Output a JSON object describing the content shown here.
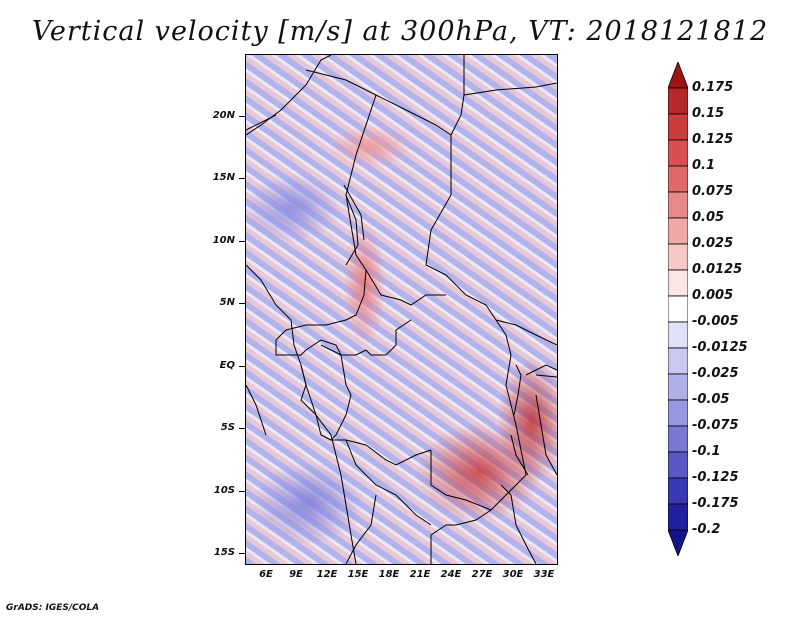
{
  "title": "Vertical velocity [m/s] at 300hPa, VT: 2018121812",
  "footer": "GrADS: IGES/COLA",
  "map": {
    "lat_labels": [
      "20N",
      "15N",
      "10N",
      "5N",
      "EQ",
      "5S",
      "10S",
      "15S"
    ],
    "lon_labels": [
      "6E",
      "9E",
      "12E",
      "15E",
      "18E",
      "21E",
      "24E",
      "27E",
      "30E",
      "33E"
    ]
  },
  "colorbar": {
    "labels": [
      "0.175",
      "0.15",
      "0.125",
      "0.1",
      "0.075",
      "0.05",
      "0.025",
      "0.0125",
      "0.005",
      "-0.005",
      "-0.0125",
      "-0.025",
      "-0.05",
      "-0.075",
      "-0.1",
      "-0.125",
      "-0.175",
      "-0.2"
    ],
    "colors": [
      "#a01414",
      "#b82828",
      "#cc3c3c",
      "#d85050",
      "#e06868",
      "#e88888",
      "#f0a8a8",
      "#f8c8c8",
      "#fbe4e4",
      "#ffffff",
      "#e0e0f8",
      "#c8c8f0",
      "#b0b0e8",
      "#9898e0",
      "#7878d4",
      "#5858c8",
      "#3838b4",
      "#2020a0",
      "#14148c"
    ]
  }
}
